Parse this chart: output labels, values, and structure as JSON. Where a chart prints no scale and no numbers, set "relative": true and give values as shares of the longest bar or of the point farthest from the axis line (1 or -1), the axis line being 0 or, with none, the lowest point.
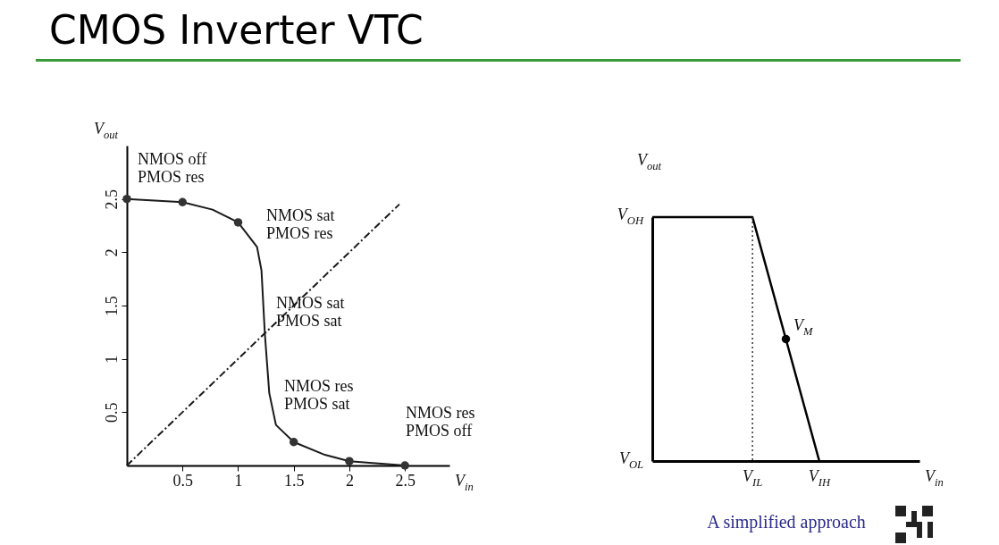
{
  "chart_data": [
    {
      "type": "line",
      "title": "CMOS Inverter VTC",
      "xlabel": "V$_{in}$",
      "ylabel": "V$_{out}$",
      "xlim": [
        0,
        2.9
      ],
      "ylim": [
        0,
        3
      ],
      "xticks": [
        0.5,
        1,
        1.5,
        2,
        2.5
      ],
      "yticks": [
        0.5,
        1,
        1.5,
        2,
        2.5
      ],
      "grid": false,
      "series": [
        {
          "type": "line",
          "color": "#1a1a1a",
          "marker": "none",
          "x": [
            0,
            0.5,
            0.77,
            1,
            1.17,
            1.21,
            1.24,
            1.28,
            1.34,
            1.5,
            1.78,
            2,
            2.5
          ],
          "values": [
            2.5,
            2.47,
            2.4,
            2.28,
            2.05,
            1.83,
            1.24,
            0.68,
            0.38,
            0.22,
            0.1,
            0.04,
            0
          ]
        },
        {
          "type": "scatter",
          "color": "#333333",
          "marker": "circle",
          "x": [
            0,
            0.5,
            1,
            1.5,
            2,
            2.5
          ],
          "values": [
            2.5,
            2.47,
            2.28,
            0.22,
            0.04,
            0
          ]
        },
        {
          "type": "line",
          "color": "#1a1a1a",
          "marker": "none",
          "line_style": "dashed",
          "x": [
            0,
            2.45
          ],
          "values": [
            0,
            2.45
          ]
        }
      ],
      "annotations": [
        "NMOS off\nPMOS res",
        "NMOS sat\nPMOS res",
        "NMOS sat\nPMOS sat",
        "NMOS res\nPMOS sat",
        "NMOS res\nPMOS off"
      ]
    },
    {
      "type": "line",
      "relative": true,
      "xlabel": "V$_{in}$",
      "ylabel": "V$_{out}$",
      "grid": false,
      "categories": [
        null,
        null,
        null,
        "V$_{IL}$",
        null,
        "V$_{IH}$",
        null,
        null,
        null
      ],
      "series": [
        {
          "type": "line",
          "color": "#000000",
          "marker": "none",
          "values": [
            1,
            1,
            1,
            1,
            0.5,
            0,
            null,
            null,
            null
          ]
        },
        {
          "type": "scatter",
          "color": "#000000",
          "marker": "circle",
          "values": [
            null,
            null,
            null,
            null,
            0.5,
            null,
            null,
            null,
            null
          ]
        }
      ],
      "ref_lines": [
        {
          "axis": "x",
          "value": "V$_{IL}$",
          "line_style": "dotted",
          "color": "#333333"
        }
      ],
      "annotations": [
        "V$_{OH}$",
        "V$_{OL}$",
        "V$_{M}$",
        "A simplified approach"
      ]
    }
  ]
}
